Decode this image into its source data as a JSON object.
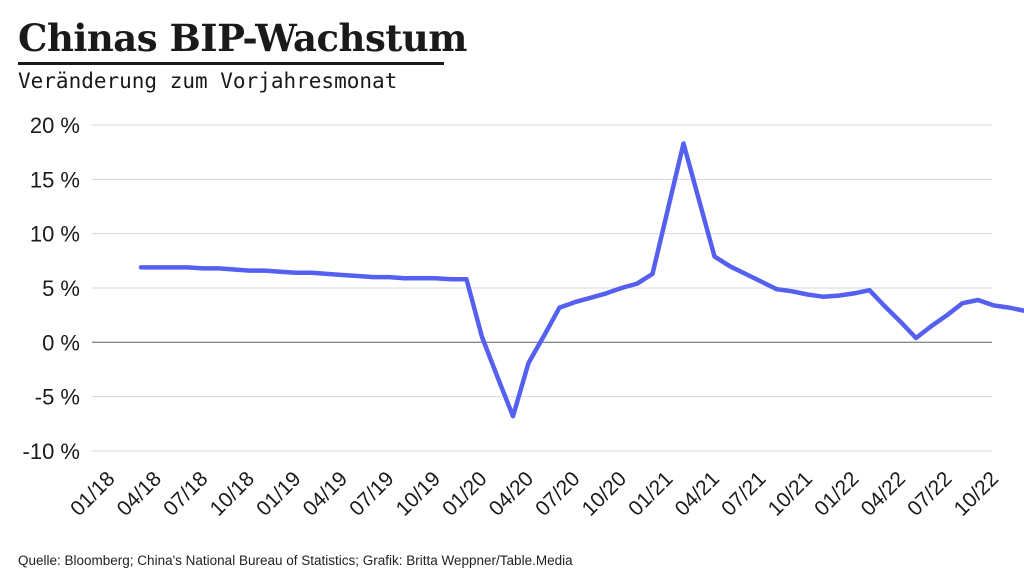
{
  "chart_data": {
    "type": "line",
    "title": "Chinas BIP-Wachstum",
    "subtitle": "Veränderung zum Vorjahresmonat",
    "source": "Quelle: Bloomberg; China's National Bureau of Statistics; Grafik: Britta Weppner/Table.Media",
    "xlabel": "",
    "ylabel": "",
    "ylim": [
      -10,
      20
    ],
    "yticks": [
      20,
      15,
      10,
      5,
      0,
      -5,
      -10
    ],
    "ytick_labels": [
      "20 %",
      "15 %",
      "10 %",
      "5 %",
      "0 %",
      "-5 %",
      "-10 %"
    ],
    "grid": true,
    "xtick_labels": [
      "01/18",
      "04/18",
      "07/18",
      "10/18",
      "01/19",
      "04/19",
      "07/19",
      "10/19",
      "01/20",
      "04/20",
      "07/20",
      "10/20",
      "01/21",
      "04/21",
      "07/21",
      "10/21",
      "01/22",
      "04/22",
      "07/22",
      "10/22"
    ],
    "line_color": "#5560f0",
    "series": [
      {
        "x": [
          "03/18",
          "04/18",
          "05/18",
          "06/18",
          "07/18",
          "08/18",
          "09/18",
          "10/18",
          "11/18",
          "12/18",
          "01/19",
          "02/19",
          "03/19",
          "04/19",
          "05/19",
          "06/19",
          "07/19",
          "08/19",
          "09/19",
          "10/19",
          "11/19",
          "12/19",
          "01/20",
          "02/20",
          "03/20",
          "04/20",
          "05/20",
          "06/20",
          "07/20",
          "08/20",
          "09/20",
          "10/20",
          "11/20",
          "12/20",
          "01/21",
          "02/21",
          "03/21",
          "04/21",
          "05/21",
          "06/21",
          "07/21",
          "08/21",
          "09/21",
          "10/21",
          "11/21",
          "12/21",
          "01/22",
          "02/22",
          "03/22",
          "04/22",
          "05/22",
          "06/22",
          "07/22",
          "08/22",
          "09/22",
          "10/22",
          "11/22",
          "12/22"
        ],
        "values": [
          6.9,
          6.9,
          6.9,
          6.9,
          6.8,
          6.8,
          6.7,
          6.6,
          6.6,
          6.5,
          6.4,
          6.4,
          6.3,
          6.2,
          6.1,
          6.0,
          6.0,
          5.9,
          5.9,
          5.9,
          5.8,
          5.8,
          0.5,
          -3.2,
          -6.8,
          -1.9,
          0.6,
          3.2,
          3.7,
          4.1,
          4.5,
          5.0,
          5.4,
          6.3,
          12.3,
          18.3,
          13.1,
          7.9,
          7.0,
          6.3,
          5.6,
          4.9,
          4.7,
          4.4,
          4.2,
          4.3,
          4.5,
          4.8,
          3.3,
          1.9,
          0.4,
          1.5,
          2.5,
          3.6,
          3.9,
          3.4,
          3.2,
          2.9
        ]
      }
    ]
  }
}
